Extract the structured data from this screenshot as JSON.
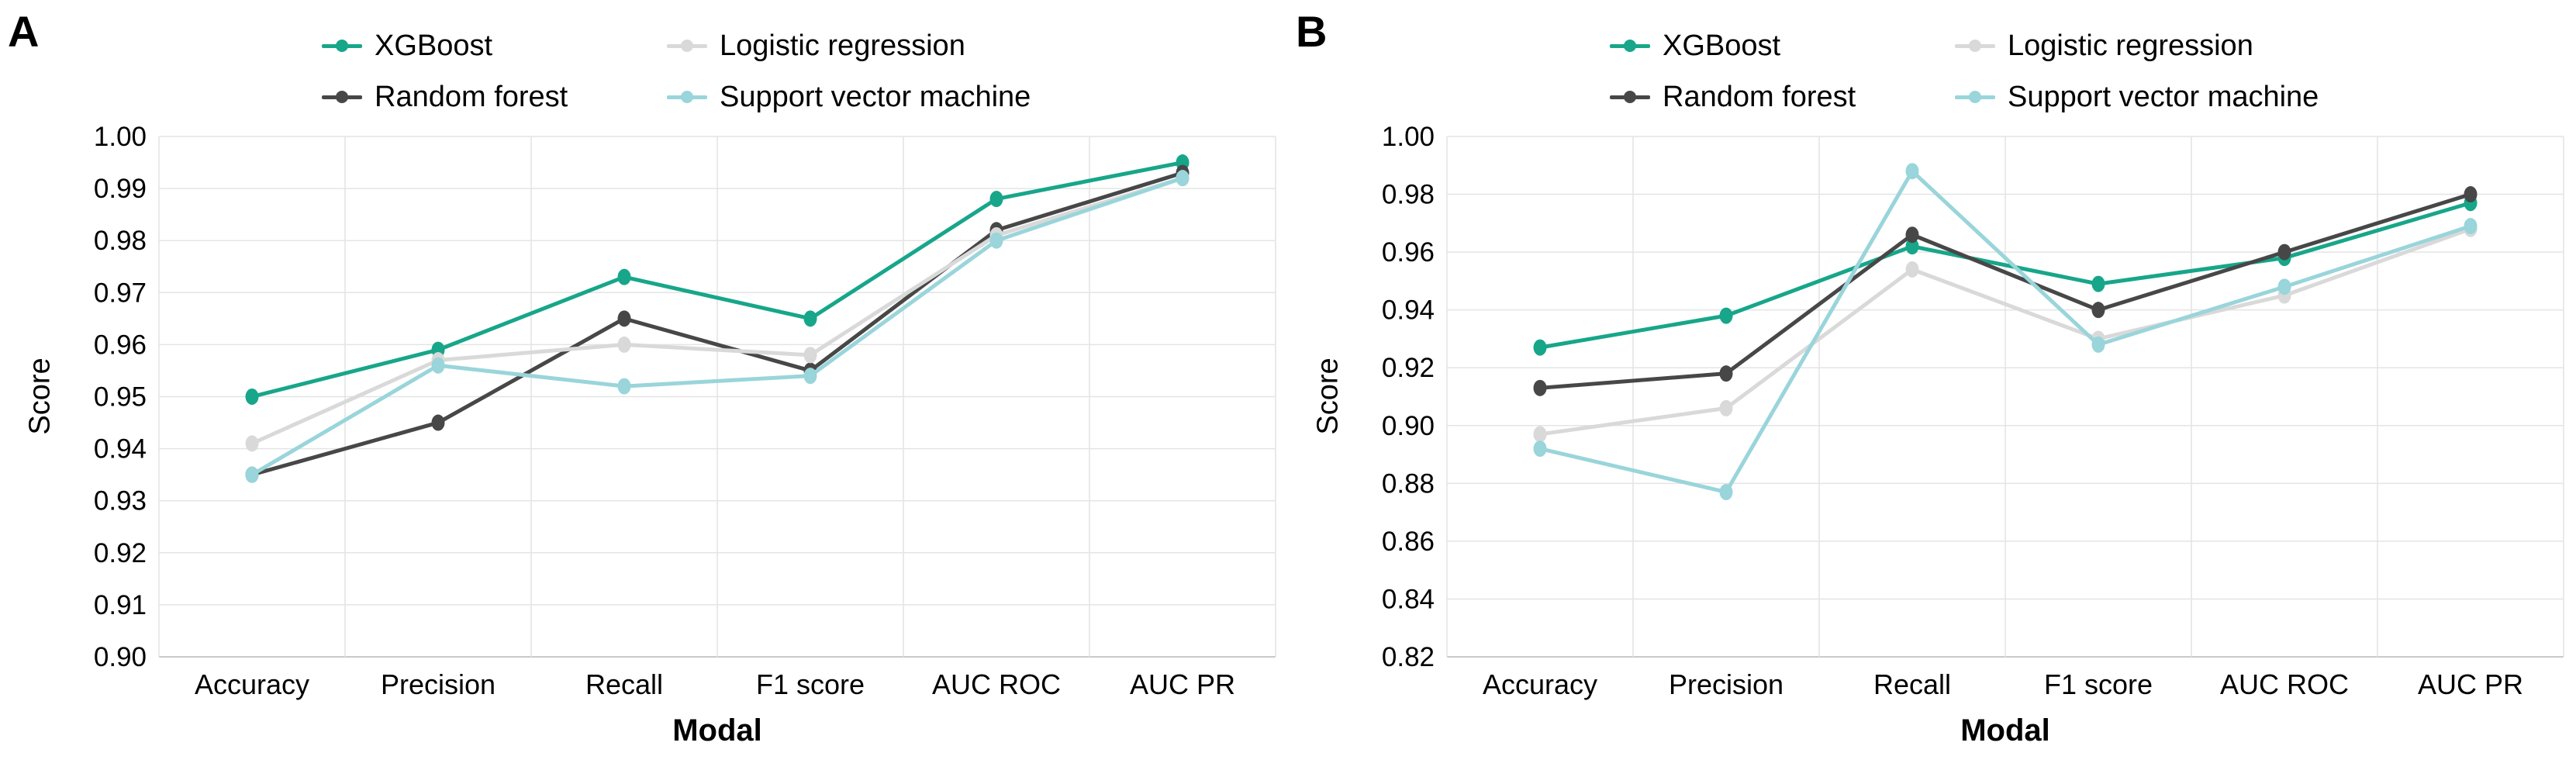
{
  "figure_title": "",
  "axis": {
    "x_label": "Modal",
    "y_label": "Score"
  },
  "legend_labels": [
    "XGBoost",
    "Random forest",
    "Logistic regression",
    "Support vector machine"
  ],
  "chart_data": [
    {
      "type": "line",
      "panel_label": "A",
      "xlabel": "Modal",
      "ylabel": "Score",
      "categories": [
        "Accuracy",
        "Precision",
        "Recall",
        "F1 score",
        "AUC ROC",
        "AUC PR"
      ],
      "ylim": [
        0.9,
        1.0
      ],
      "ytick_step": 0.01,
      "grid": true,
      "legend_position": "top",
      "series": [
        {
          "name": "XGBoost",
          "color": "#17a689",
          "values": [
            0.95,
            0.959,
            0.973,
            0.965,
            0.988,
            0.995
          ]
        },
        {
          "name": "Random forest",
          "color": "#474747",
          "values": [
            0.935,
            0.945,
            0.965,
            0.955,
            0.982,
            0.993
          ]
        },
        {
          "name": "Logistic regression",
          "color": "#d9d9d9",
          "values": [
            0.941,
            0.957,
            0.96,
            0.958,
            0.981,
            0.992
          ]
        },
        {
          "name": "Support vector machine",
          "color": "#99d5da",
          "values": [
            0.935,
            0.956,
            0.952,
            0.954,
            0.98,
            0.992
          ]
        }
      ]
    },
    {
      "type": "line",
      "panel_label": "B",
      "xlabel": "Modal",
      "ylabel": "Score",
      "categories": [
        "Accuracy",
        "Precision",
        "Recall",
        "F1 score",
        "AUC ROC",
        "AUC PR"
      ],
      "ylim": [
        0.82,
        1.0
      ],
      "ytick_step": 0.02,
      "grid": true,
      "legend_position": "top",
      "series": [
        {
          "name": "XGBoost",
          "color": "#17a689",
          "values": [
            0.927,
            0.938,
            0.962,
            0.949,
            0.958,
            0.977
          ]
        },
        {
          "name": "Random forest",
          "color": "#474747",
          "values": [
            0.913,
            0.918,
            0.966,
            0.94,
            0.96,
            0.98
          ]
        },
        {
          "name": "Logistic regression",
          "color": "#d9d9d9",
          "values": [
            0.897,
            0.906,
            0.954,
            0.93,
            0.945,
            0.968
          ]
        },
        {
          "name": "Support vector machine",
          "color": "#99d5da",
          "values": [
            0.892,
            0.877,
            0.988,
            0.928,
            0.948,
            0.969
          ]
        }
      ]
    }
  ]
}
